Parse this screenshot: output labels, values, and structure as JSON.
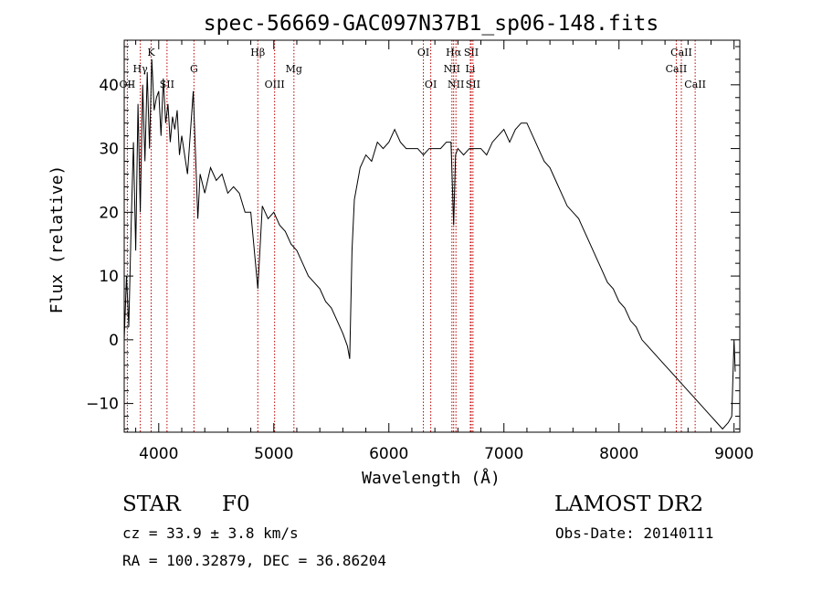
{
  "chart_data": {
    "type": "line",
    "title": "spec-56669-GAC097N37B1_sp06-148.fits",
    "xlabel": "Wavelength (Å)",
    "ylabel": "Flux (relative)",
    "xlim": [
      3700,
      9050
    ],
    "ylim": [
      -14.5,
      47
    ],
    "xticks": [
      4000,
      5000,
      6000,
      7000,
      8000,
      9000
    ],
    "yticks": [
      -10,
      0,
      10,
      20,
      30,
      40
    ],
    "x": [
      3700,
      3720,
      3740,
      3760,
      3780,
      3800,
      3820,
      3840,
      3860,
      3880,
      3900,
      3920,
      3940,
      3960,
      3980,
      4000,
      4020,
      4040,
      4060,
      4080,
      4100,
      4120,
      4140,
      4160,
      4180,
      4200,
      4250,
      4300,
      4340,
      4360,
      4400,
      4450,
      4500,
      4550,
      4600,
      4650,
      4700,
      4750,
      4800,
      4861,
      4900,
      4950,
      5000,
      5050,
      5100,
      5150,
      5200,
      5250,
      5300,
      5350,
      5400,
      5450,
      5500,
      5550,
      5600,
      5640,
      5660,
      5680,
      5700,
      5750,
      5800,
      5850,
      5900,
      5950,
      6000,
      6050,
      6100,
      6150,
      6200,
      6250,
      6300,
      6350,
      6400,
      6450,
      6500,
      6540,
      6563,
      6580,
      6600,
      6650,
      6700,
      6750,
      6800,
      6850,
      6900,
      6950,
      7000,
      7050,
      7100,
      7150,
      7200,
      7250,
      7300,
      7350,
      7400,
      7450,
      7500,
      7550,
      7600,
      7650,
      7700,
      7750,
      7800,
      7850,
      7900,
      7950,
      8000,
      8050,
      8100,
      8150,
      8200,
      8250,
      8300,
      8350,
      8400,
      8450,
      8500,
      8550,
      8600,
      8650,
      8700,
      8750,
      8800,
      8850,
      8900,
      8950,
      8980,
      9000,
      9010
    ],
    "y": [
      0,
      10,
      2,
      18,
      31,
      14,
      37,
      20,
      40,
      28,
      42,
      30,
      44,
      36,
      38,
      39,
      32,
      41,
      34,
      37,
      31,
      35,
      33,
      36,
      29,
      32,
      26,
      39,
      19,
      26,
      23,
      27,
      25,
      26,
      23,
      24,
      23,
      20,
      20,
      8,
      21,
      19,
      20,
      18,
      17,
      15,
      14,
      12,
      10,
      9,
      8,
      6,
      5,
      3,
      1,
      -1,
      -3,
      14,
      22,
      27,
      29,
      28,
      31,
      30,
      31,
      33,
      31,
      30,
      30,
      30,
      29,
      30,
      30,
      30,
      31,
      31,
      18,
      29,
      30,
      29,
      30,
      30,
      30,
      29,
      31,
      32,
      33,
      31,
      33,
      34,
      34,
      32,
      30,
      28,
      27,
      25,
      23,
      21,
      20,
      19,
      17,
      15,
      13,
      11,
      9,
      8,
      6,
      5,
      3,
      2,
      0,
      -1,
      -2,
      -3,
      -4,
      -5,
      -6,
      -7,
      -8,
      -9,
      -10,
      -11,
      -12,
      -13,
      -14,
      -13,
      -12,
      0,
      -5
    ],
    "lines": [
      {
        "label": "OII",
        "x": 3727,
        "row": 3
      },
      {
        "label": "Hγ",
        "x": 3840,
        "row": 2
      },
      {
        "label": "K",
        "x": 3934,
        "row": 1
      },
      {
        "label": "SII",
        "x": 4072,
        "row": 3
      },
      {
        "label": "G",
        "x": 4306,
        "row": 2
      },
      {
        "label": "Hβ",
        "x": 4861,
        "row": 1
      },
      {
        "label": "OIII",
        "x": 5007,
        "row": 3
      },
      {
        "label": "Mg",
        "x": 5175,
        "row": 2
      },
      {
        "label": "OI",
        "x": 6300,
        "row": 1
      },
      {
        "label": "OI",
        "x": 6364,
        "row": 3
      },
      {
        "label": "Hα",
        "x": 6563,
        "row": 1
      },
      {
        "label": "NII",
        "x": 6548,
        "row": 2
      },
      {
        "label": "NII",
        "x": 6583,
        "row": 3
      },
      {
        "label": "SII",
        "x": 6716,
        "row": 1
      },
      {
        "label": "Li",
        "x": 6708,
        "row": 2
      },
      {
        "label": "SII",
        "x": 6731,
        "row": 3
      },
      {
        "label": "CaII",
        "x": 8498,
        "row": 2
      },
      {
        "label": "CaII",
        "x": 8542,
        "row": 1
      },
      {
        "label": "CaII",
        "x": 8662,
        "row": 3
      }
    ]
  },
  "info": {
    "class": "STAR",
    "subclass": "F0",
    "survey": "LAMOST DR2",
    "cz": "cz = 33.9 ± 3.8 km/s",
    "obs_date": "Obs-Date: 20140111",
    "radec": "RA = 100.32879, DEC =  36.86204"
  }
}
